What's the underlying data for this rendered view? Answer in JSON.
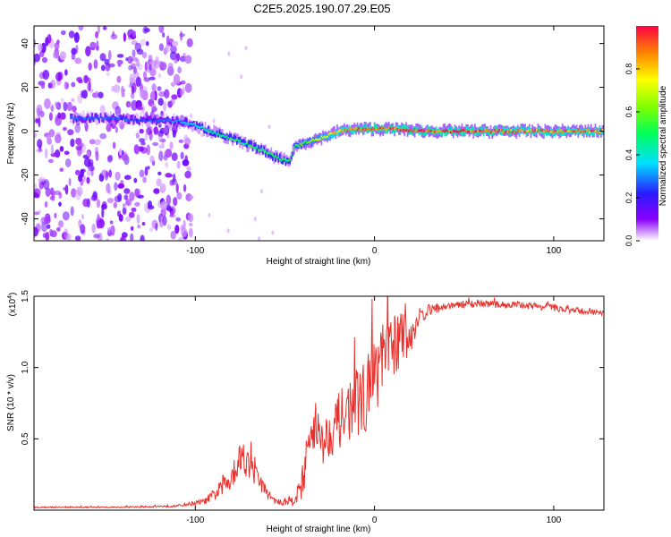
{
  "title": "C2E5.2025.190.07.29.E05",
  "chart_data": [
    {
      "type": "heatmap",
      "xlabel": "Height of straight line (km)",
      "ylabel": "Frequency (Hz)",
      "xlim": [
        -190,
        128
      ],
      "ylim": [
        -50,
        48
      ],
      "xticks": [
        -100,
        0,
        100
      ],
      "xtick_labels": [
        "-100",
        "0",
        "100"
      ],
      "yticks": [
        -40,
        -20,
        0,
        20,
        40
      ],
      "ytick_labels": [
        "-40",
        "-20",
        "0",
        "20",
        "40"
      ],
      "grid": false,
      "colorbar": {
        "label": "Normalized spectral amplitude",
        "range": [
          0,
          1
        ],
        "ticks": [
          0.0,
          0.2,
          0.4,
          0.6,
          0.8
        ],
        "tick_labels": [
          "0.0",
          "0.2",
          "0.4",
          "0.6",
          "0.8"
        ],
        "colormap": "rainbow (white-violet-blue-cyan-green-yellow-orange-red)"
      },
      "ridge": [
        {
          "x": -170,
          "y": 6,
          "amp": 0.28
        },
        {
          "x": -150,
          "y": 6,
          "amp": 0.28
        },
        {
          "x": -130,
          "y": 5,
          "amp": 0.25
        },
        {
          "x": -115,
          "y": 5,
          "amp": 0.3
        },
        {
          "x": -105,
          "y": 4,
          "amp": 0.35
        },
        {
          "x": -95,
          "y": 1,
          "amp": 0.45
        },
        {
          "x": -85,
          "y": -2,
          "amp": 0.5
        },
        {
          "x": -75,
          "y": -5,
          "amp": 0.5
        },
        {
          "x": -65,
          "y": -8,
          "amp": 0.5
        },
        {
          "x": -55,
          "y": -12,
          "amp": 0.5
        },
        {
          "x": -48,
          "y": -14,
          "amp": 0.5
        },
        {
          "x": -45,
          "y": -7,
          "amp": 0.55
        },
        {
          "x": -38,
          "y": -5,
          "amp": 0.6
        },
        {
          "x": -30,
          "y": -3,
          "amp": 0.7
        },
        {
          "x": -20,
          "y": 0,
          "amp": 0.85
        },
        {
          "x": -10,
          "y": 1,
          "amp": 0.9
        },
        {
          "x": 0,
          "y": 1,
          "amp": 0.95
        },
        {
          "x": 10,
          "y": 1,
          "amp": 0.95
        },
        {
          "x": 30,
          "y": 0,
          "amp": 0.95
        },
        {
          "x": 60,
          "y": 0,
          "amp": 0.95
        },
        {
          "x": 90,
          "y": 0,
          "amp": 0.9
        },
        {
          "x": 128,
          "y": 0,
          "amp": 0.9
        }
      ],
      "noise_region_x": [
        -190,
        -110
      ],
      "colors": {
        "frame": "#000000"
      }
    },
    {
      "type": "line",
      "xlabel": "Height of straight line (km)",
      "ylabel": "SNR (10 * v/v)",
      "scale_label": "(x10",
      "scale_exponent": "4",
      "xlim": [
        -190,
        128
      ],
      "ylim": [
        0,
        1.5
      ],
      "xticks": [
        -100,
        0,
        100
      ],
      "xtick_labels": [
        "-100",
        "0",
        "100"
      ],
      "yticks": [
        0.5,
        1.0,
        1.5
      ],
      "ytick_labels": [
        "0.5",
        "1.0",
        "1.5"
      ],
      "grid": false,
      "series": [
        {
          "color": "#e8312c",
          "x": [
            -190,
            -140,
            -110,
            -95,
            -88,
            -82,
            -77,
            -73,
            -70,
            -65,
            -60,
            -55,
            -50,
            -45,
            -41,
            -36,
            -33,
            -30,
            -25,
            -20,
            -15,
            -10,
            -5,
            0,
            5,
            10,
            15,
            20,
            25,
            30,
            40,
            50,
            60,
            70,
            80,
            90,
            100,
            110,
            120,
            128
          ],
          "y": [
            0.02,
            0.02,
            0.03,
            0.06,
            0.12,
            0.2,
            0.32,
            0.4,
            0.3,
            0.22,
            0.12,
            0.06,
            0.05,
            0.08,
            0.15,
            0.5,
            0.65,
            0.45,
            0.55,
            0.62,
            0.7,
            0.75,
            0.8,
            0.95,
            1.05,
            1.15,
            1.2,
            1.22,
            1.35,
            1.4,
            1.43,
            1.44,
            1.45,
            1.44,
            1.44,
            1.43,
            1.42,
            1.4,
            1.39,
            1.38
          ],
          "noise": [
            0.004,
            0.004,
            0.008,
            0.02,
            0.05,
            0.09,
            0.12,
            0.14,
            0.1,
            0.07,
            0.04,
            0.02,
            0.02,
            0.05,
            0.1,
            0.18,
            0.2,
            0.16,
            0.18,
            0.2,
            0.22,
            0.24,
            0.25,
            0.28,
            0.26,
            0.24,
            0.2,
            0.12,
            0.06,
            0.04,
            0.025,
            0.025,
            0.025,
            0.025,
            0.025,
            0.025,
            0.025,
            0.025,
            0.02,
            0.02
          ]
        }
      ]
    }
  ]
}
